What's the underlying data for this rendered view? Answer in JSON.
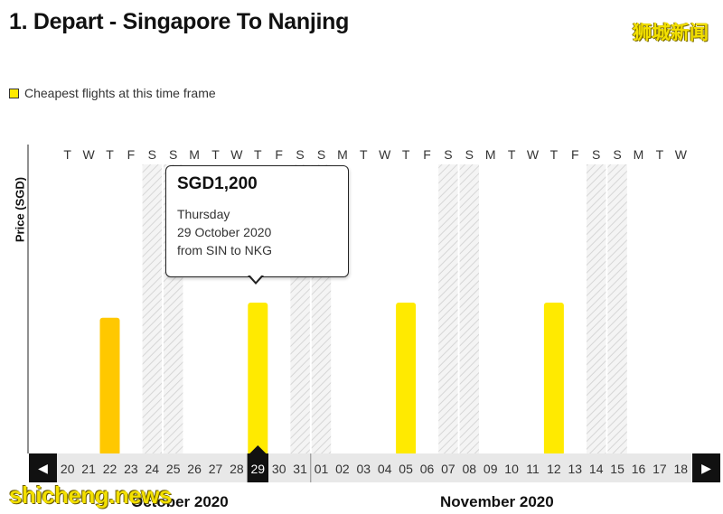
{
  "title": "1. Depart - Singapore To Nanjing",
  "watermark_top": "狮城新闻",
  "watermark_bottom": "shicheng.news",
  "legend": {
    "label": "Cheapest flights at this time frame",
    "color": "#ffea00"
  },
  "tooltip": {
    "price": "SGD1,200",
    "day": "Thursday",
    "date": "29 October 2020",
    "route": "from SIN to NKG"
  },
  "navigation": {
    "prev_icon": "◀",
    "next_icon": "▶"
  },
  "months": [
    "October 2020",
    "November 2020"
  ],
  "chart_data": {
    "type": "bar",
    "ylabel": "Price (SGD)",
    "categories": [
      "20",
      "21",
      "22",
      "23",
      "24",
      "25",
      "26",
      "27",
      "28",
      "29",
      "30",
      "31",
      "01",
      "02",
      "03",
      "04",
      "05",
      "06",
      "07",
      "08",
      "09",
      "10",
      "11",
      "12",
      "13",
      "14",
      "15",
      "16",
      "17",
      "18"
    ],
    "weekdays": [
      "T",
      "W",
      "T",
      "F",
      "S",
      "S",
      "M",
      "T",
      "W",
      "T",
      "F",
      "S",
      "S",
      "M",
      "T",
      "W",
      "T",
      "F",
      "S",
      "S",
      "M",
      "T",
      "W",
      "T",
      "F",
      "S",
      "S",
      "M",
      "T",
      "W"
    ],
    "weekend_indices": [
      4,
      5,
      11,
      12,
      18,
      19,
      25,
      26
    ],
    "selected_index": 9,
    "series": [
      {
        "values": [
          null,
          null,
          1080,
          null,
          null,
          null,
          null,
          null,
          null,
          1200,
          null,
          null,
          null,
          null,
          null,
          null,
          1200,
          null,
          null,
          null,
          null,
          null,
          null,
          1200,
          null,
          null,
          null,
          null,
          null,
          null
        ]
      }
    ],
    "bar_colors": {
      "default": "#ffea00",
      "index_2": "#ffc800"
    },
    "ylim": [
      0,
      2300
    ]
  }
}
